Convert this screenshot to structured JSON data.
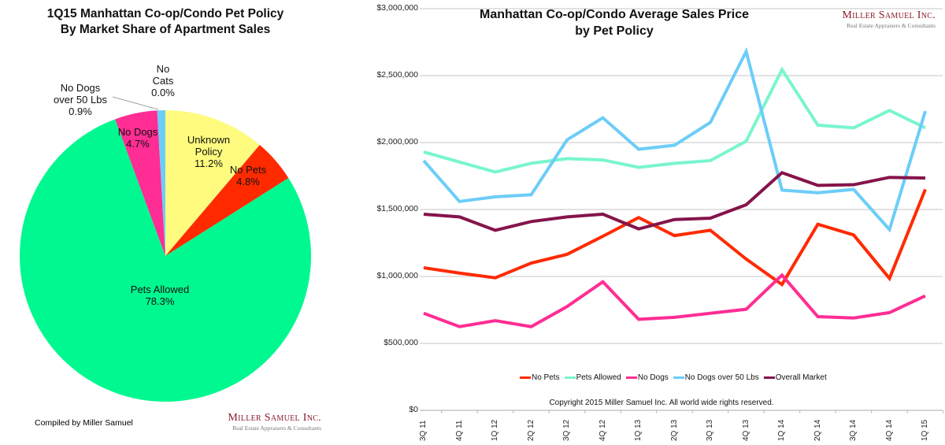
{
  "chart_data": [
    {
      "type": "pie",
      "title": "1Q15 Manhattan Co-op/Condo Pet Policy\nBy Market Share of Apartment Sales",
      "title_lines": [
        "1Q15 Manhattan Co-op/Condo Pet Policy",
        "By Market Share of Apartment Sales"
      ],
      "slices": [
        {
          "label": "Unknown Policy",
          "label_lines": [
            "Unknown",
            "Policy"
          ],
          "value": 11.2,
          "value_label": "11.2%",
          "color": "#fefb7e"
        },
        {
          "label": "No Pets",
          "label_lines": [
            "No Pets"
          ],
          "value": 4.8,
          "value_label": "4.8%",
          "color": "#ff2a00"
        },
        {
          "label": "Pets Allowed",
          "label_lines": [
            "Pets Allowed"
          ],
          "value": 78.3,
          "value_label": "78.3%",
          "color": "#00f890"
        },
        {
          "label": "No Dogs",
          "label_lines": [
            "No Dogs"
          ],
          "value": 4.7,
          "value_label": "4.7%",
          "color": "#ff2d94"
        },
        {
          "label": "No Dogs over 50 Lbs",
          "label_lines": [
            "No Dogs",
            "over 50 Lbs"
          ],
          "value": 0.9,
          "value_label": "0.9%",
          "color": "#6ccdf8"
        },
        {
          "label": "No Cats",
          "label_lines": [
            "No",
            "Cats"
          ],
          "value": 0.0,
          "value_label": "0.0%",
          "color": "#b0b0b0"
        }
      ],
      "footnote": "Compiled by Miller Samuel"
    },
    {
      "type": "line",
      "title_lines": [
        "Manhattan Co-op/Condo Average Sales Price",
        "by Pet Policy"
      ],
      "categories": [
        "3Q 11",
        "4Q 11",
        "1Q 12",
        "2Q 12",
        "3Q 12",
        "4Q 12",
        "1Q 13",
        "2Q 13",
        "3Q 13",
        "4Q 13",
        "1Q 14",
        "2Q 14",
        "3Q 14",
        "4Q 14",
        "1Q 15"
      ],
      "ylim": [
        0,
        3000000
      ],
      "yticks": [
        "$0",
        "$500,000",
        "$1,000,000",
        "$1,500,000",
        "$2,000,000",
        "$2,500,000",
        "$3,000,000"
      ],
      "grid": true,
      "legend_position": "bottom",
      "series": [
        {
          "name": "No Pets",
          "color": "#ff2a00",
          "values": [
            1065000,
            1025000,
            990000,
            1100000,
            1165000,
            1300000,
            1440000,
            1305000,
            1345000,
            1130000,
            940000,
            1390000,
            1310000,
            985000,
            1650000
          ]
        },
        {
          "name": "Pets Allowed",
          "color": "#79f5cf",
          "values": [
            1930000,
            1855000,
            1780000,
            1845000,
            1880000,
            1870000,
            1815000,
            1845000,
            1865000,
            2010000,
            2545000,
            2130000,
            2110000,
            2240000,
            2110000
          ]
        },
        {
          "name": "No Dogs",
          "color": "#ff2d94",
          "values": [
            725000,
            625000,
            670000,
            625000,
            775000,
            960000,
            680000,
            695000,
            725000,
            755000,
            1010000,
            700000,
            690000,
            730000,
            855000
          ]
        },
        {
          "name": "No Dogs over 50 Lbs",
          "color": "#6ccdf8",
          "values": [
            1865000,
            1560000,
            1595000,
            1610000,
            2020000,
            2185000,
            1950000,
            1980000,
            2150000,
            2680000,
            1645000,
            1625000,
            1650000,
            1350000,
            2235000
          ]
        },
        {
          "name": "Overall Market",
          "color": "#85144b",
          "values": [
            1465000,
            1445000,
            1345000,
            1410000,
            1445000,
            1465000,
            1355000,
            1425000,
            1435000,
            1535000,
            1775000,
            1680000,
            1685000,
            1740000,
            1735000
          ]
        }
      ],
      "footnote": "Copyright 2015 Miller Samuel Inc.  All world wide rights reserved."
    }
  ],
  "logo": {
    "name": "Miller Samuel Inc.",
    "tagline": "Real Estate Appraisers & Consultants"
  }
}
